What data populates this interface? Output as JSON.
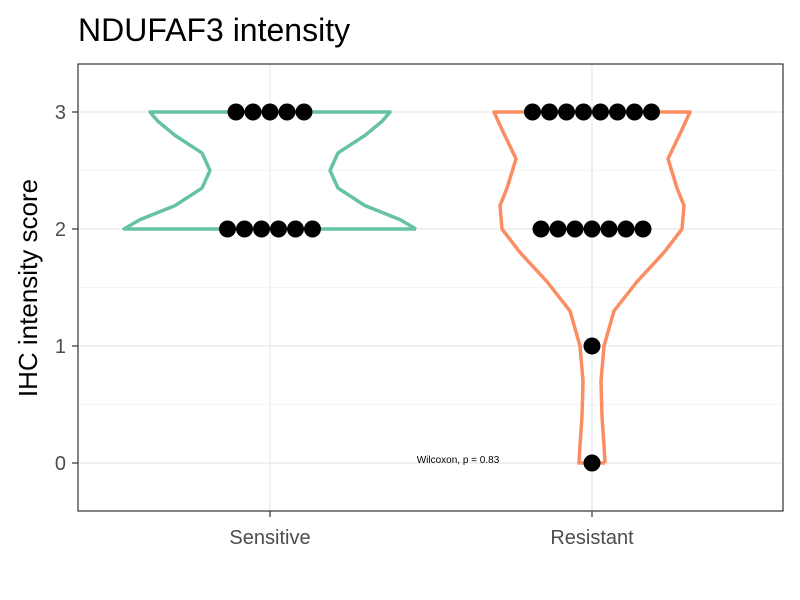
{
  "chart_data": {
    "type": "violin",
    "title": "NDUFAF3 intensity",
    "xlabel": "",
    "ylabel": "IHC intensity score",
    "categories": [
      "Sensitive",
      "Resistant"
    ],
    "ylim": [
      -0.4,
      3.4
    ],
    "yticks": [
      0,
      1,
      2,
      3
    ],
    "grid": true,
    "legend": "none",
    "series": [
      {
        "category": "Sensitive",
        "color": "#66c2a5",
        "points": [
          2,
          2,
          2,
          2,
          2,
          2,
          3,
          3,
          3,
          3,
          3
        ]
      },
      {
        "category": "Resistant",
        "color": "#fc8d62",
        "points": [
          0,
          1,
          2,
          2,
          2,
          2,
          2,
          2,
          2,
          3,
          3,
          3,
          3,
          3,
          3,
          3,
          3
        ]
      }
    ],
    "annotation": "Wilcoxon, p = 0.83"
  }
}
